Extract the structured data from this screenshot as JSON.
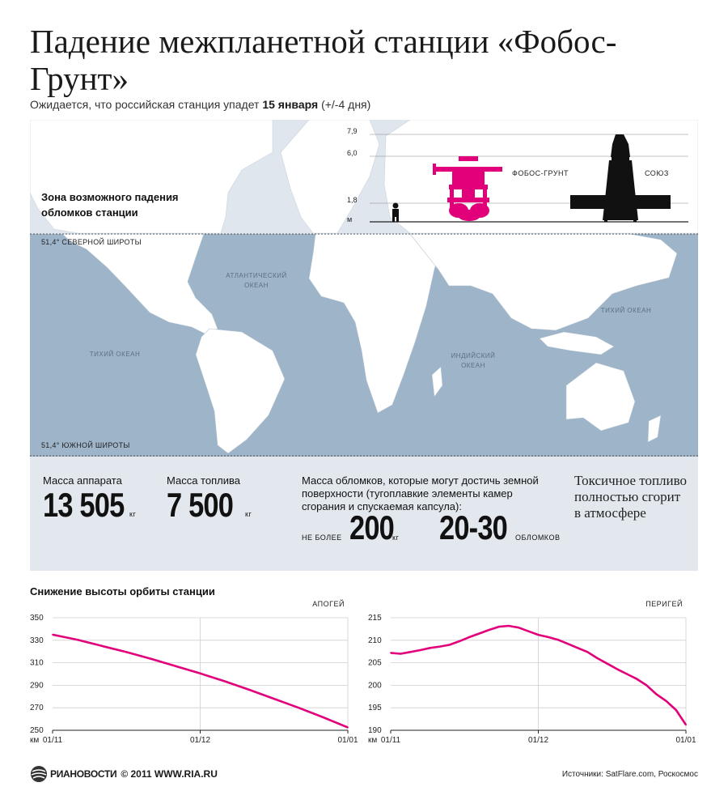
{
  "title": "Падение межпланетной станции «Фобос-Грунт»",
  "subtitle": {
    "prefix": "Ожидается, что российская станция упадет",
    "date": "15 января",
    "suffix": "(+/-4 дня)"
  },
  "map": {
    "zone_label_line1": "Зона возможного падения",
    "zone_label_line2": "обломков станции",
    "north_lat": "51,4° СЕВЕРНОЙ ШИРОТЫ",
    "south_lat": "51,4° ЮЖНОЙ ШИРОТЫ",
    "oceans": [
      {
        "line1": "АТЛАНТИЧЕСКИЙ",
        "line2": "ОКЕАН"
      },
      {
        "line1": "ТИХИЙ ОКЕАН",
        "line2": ""
      },
      {
        "line1": "ИНДИЙСКИЙ",
        "line2": "ОКЕАН"
      },
      {
        "line1": "ТИХИЙ ОКЕАН",
        "line2": ""
      }
    ],
    "colors": {
      "zone": "#9eb4c8",
      "land": "#ffffff",
      "water": "#dfe6ee"
    }
  },
  "size_scale": {
    "ticks": [
      "7,9",
      "6,0",
      "1,8"
    ],
    "unit": "м",
    "labels": {
      "phobos": "ФОБОС-ГРУНТ",
      "soyuz": "СОЮЗ"
    },
    "colors": {
      "phobos": "#e2007a",
      "soyuz": "#111111"
    }
  },
  "stats": {
    "mass_label": "Масса аппарата",
    "mass_value": "13 505",
    "mass_unit": "кг",
    "fuel_label": "Масса топлива",
    "fuel_value": "7 500",
    "fuel_unit": "кг",
    "debris_line1": "Масса обломков, которые могут достичь земной",
    "debris_line2": "поверхности (тугоплавкие элементы камер",
    "debris_line3": "сгорания и спускаемая капсула):",
    "debris_prefix": "НЕ БОЛЕЕ",
    "debris_value": "200",
    "debris_unit": "кг",
    "pieces_value": "20-30",
    "pieces_unit": "ОБЛОМКОВ",
    "toxic_line1": "Токсичное топливо",
    "toxic_line2": "полностью сгорит",
    "toxic_line3": "в атмосфере"
  },
  "orbit_title": "Снижение высоты орбиты станции",
  "chart_data": [
    {
      "type": "line",
      "name": "АПОГЕЙ",
      "ylabel": "км",
      "ylim": [
        250,
        350
      ],
      "yticks": [
        "350",
        "330",
        "310",
        "290",
        "270",
        "250"
      ],
      "xticks": [
        "01/11",
        "01/12",
        "01/01"
      ],
      "color": "#e2007a",
      "x": [
        0,
        5,
        10,
        15,
        20,
        25,
        30,
        35,
        40,
        45,
        50,
        55,
        60
      ],
      "values": [
        335,
        330.5,
        325,
        319.5,
        313.5,
        307,
        300.5,
        293.5,
        286,
        278,
        270,
        261.5,
        252.5
      ]
    },
    {
      "type": "line",
      "name": "ПЕРИГЕЙ",
      "ylabel": "км",
      "ylim": [
        190,
        215
      ],
      "yticks": [
        "215",
        "210",
        "205",
        "200",
        "195",
        "190"
      ],
      "xticks": [
        "01/11",
        "01/12",
        "01/01"
      ],
      "color": "#e2007a",
      "x": [
        0,
        2,
        4,
        6,
        8,
        10,
        12,
        14,
        16,
        18,
        20,
        22,
        24,
        26,
        28,
        30,
        32,
        34,
        36,
        38,
        40,
        42,
        44,
        46,
        48,
        50,
        52,
        54,
        56,
        58,
        60
      ],
      "values": [
        207.2,
        207.0,
        207.4,
        207.8,
        208.3,
        208.6,
        209.0,
        209.8,
        210.7,
        211.5,
        212.3,
        213.0,
        213.2,
        212.8,
        212.0,
        211.2,
        210.7,
        210.1,
        209.2,
        208.3,
        207.4,
        206.0,
        204.8,
        203.6,
        202.5,
        201.4,
        200.0,
        198.0,
        196.5,
        194.5,
        191.2
      ]
    }
  ],
  "footer": {
    "logo": "РИАНОВОСТИ",
    "copyright": "© 2011  WWW.RIA.RU",
    "sources": "Источники: SatFlare.com, Роскосмос"
  }
}
